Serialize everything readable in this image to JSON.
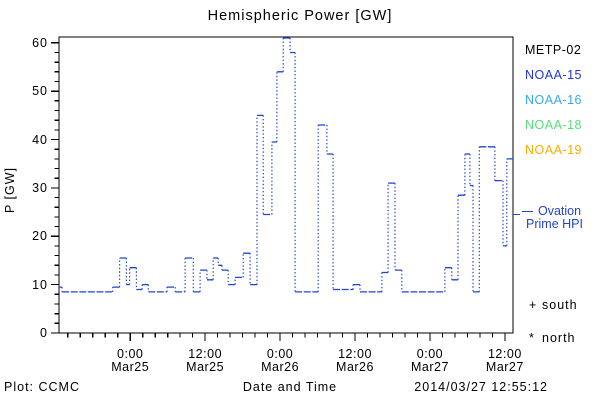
{
  "title": "Hemispheric Power [GW]",
  "xlabel": "Date and Time",
  "ylabel": "P [GW]",
  "credit": "Plot: CCMC",
  "timestamp": "2014/03/27 12:55:12",
  "colors": {
    "line": "#2244cc",
    "frame": "#000000",
    "background": "#ffffff"
  },
  "legend": [
    {
      "label": "METP-02",
      "color": "#000000"
    },
    {
      "label": "NOAA-15",
      "color": "#2233dd"
    },
    {
      "label": "NOAA-16",
      "color": "#33aaee"
    },
    {
      "label": "NOAA-18",
      "color": "#55dd77"
    },
    {
      "label": "NOAA-19",
      "color": "#ffaa00"
    }
  ],
  "annotation": {
    "line1": "Ovation",
    "line2": "Prime HPI",
    "color": "#2244cc",
    "marker_gw": 24.5
  },
  "marker_legend": [
    {
      "symbol": "+",
      "label": "south"
    },
    {
      "symbol": "*",
      "label": "north"
    }
  ],
  "chart_data": {
    "type": "line",
    "subtype": "dotted-step",
    "title": "Hemispheric Power [GW]",
    "xlabel": "Date and Time",
    "ylabel": "P [GW]",
    "x_unit": "hours since 2014-03-25 00:00 UT",
    "xlim": [
      -11.4,
      61.3
    ],
    "ylim": [
      0,
      61.2
    ],
    "grid": false,
    "legend_position": "right-outside",
    "x_ticks": [
      {
        "t": 0,
        "time": "0:00",
        "date": "Mar25"
      },
      {
        "t": 12,
        "time": "12:00",
        "date": "Mar25"
      },
      {
        "t": 24,
        "time": "0:00",
        "date": "Mar26"
      },
      {
        "t": 36,
        "time": "12:00",
        "date": "Mar26"
      },
      {
        "t": 48,
        "time": "0:00",
        "date": "Mar27"
      },
      {
        "t": 60,
        "time": "12:00",
        "date": "Mar27"
      }
    ],
    "x_minor_step_hours": 2,
    "y_ticks": [
      0,
      10,
      20,
      30,
      40,
      50,
      60
    ],
    "y_minor_step": 2,
    "series": [
      {
        "name": "Ovation Prime HPI",
        "color": "#2244cc",
        "style": "dotted-step",
        "t_end": 61.3,
        "steps": [
          [
            -11.4,
            9.5
          ],
          [
            -10.9,
            8.5
          ],
          [
            -2.8,
            9.5
          ],
          [
            -1.7,
            15.5
          ],
          [
            -0.6,
            10
          ],
          [
            -0.1,
            13.5
          ],
          [
            1.0,
            9
          ],
          [
            1.9,
            10
          ],
          [
            2.9,
            8.5
          ],
          [
            5.9,
            9.5
          ],
          [
            7.2,
            8.5
          ],
          [
            8.8,
            15.5
          ],
          [
            10.1,
            8.5
          ],
          [
            11.2,
            13
          ],
          [
            12.3,
            11
          ],
          [
            13.3,
            15.5
          ],
          [
            14.1,
            14
          ],
          [
            14.7,
            13
          ],
          [
            15.7,
            10
          ],
          [
            16.8,
            11.5
          ],
          [
            18.1,
            16.5
          ],
          [
            19.2,
            10
          ],
          [
            20.3,
            45
          ],
          [
            21.3,
            24.5
          ],
          [
            22.7,
            39.5
          ],
          [
            23.5,
            54
          ],
          [
            24.5,
            61
          ],
          [
            25.6,
            58
          ],
          [
            26.4,
            8.5
          ],
          [
            30.1,
            43
          ],
          [
            31.5,
            37
          ],
          [
            32.5,
            9
          ],
          [
            35.7,
            10
          ],
          [
            36.8,
            8.5
          ],
          [
            40.3,
            12.5
          ],
          [
            41.3,
            31
          ],
          [
            42.4,
            13
          ],
          [
            43.5,
            8.5
          ],
          [
            50.4,
            13.5
          ],
          [
            51.5,
            11
          ],
          [
            52.5,
            28.5
          ],
          [
            53.6,
            37
          ],
          [
            54.4,
            30.5
          ],
          [
            54.9,
            8.5
          ],
          [
            55.9,
            38.5
          ],
          [
            58.4,
            31.5
          ],
          [
            59.7,
            18
          ],
          [
            60.3,
            36
          ]
        ]
      }
    ]
  }
}
